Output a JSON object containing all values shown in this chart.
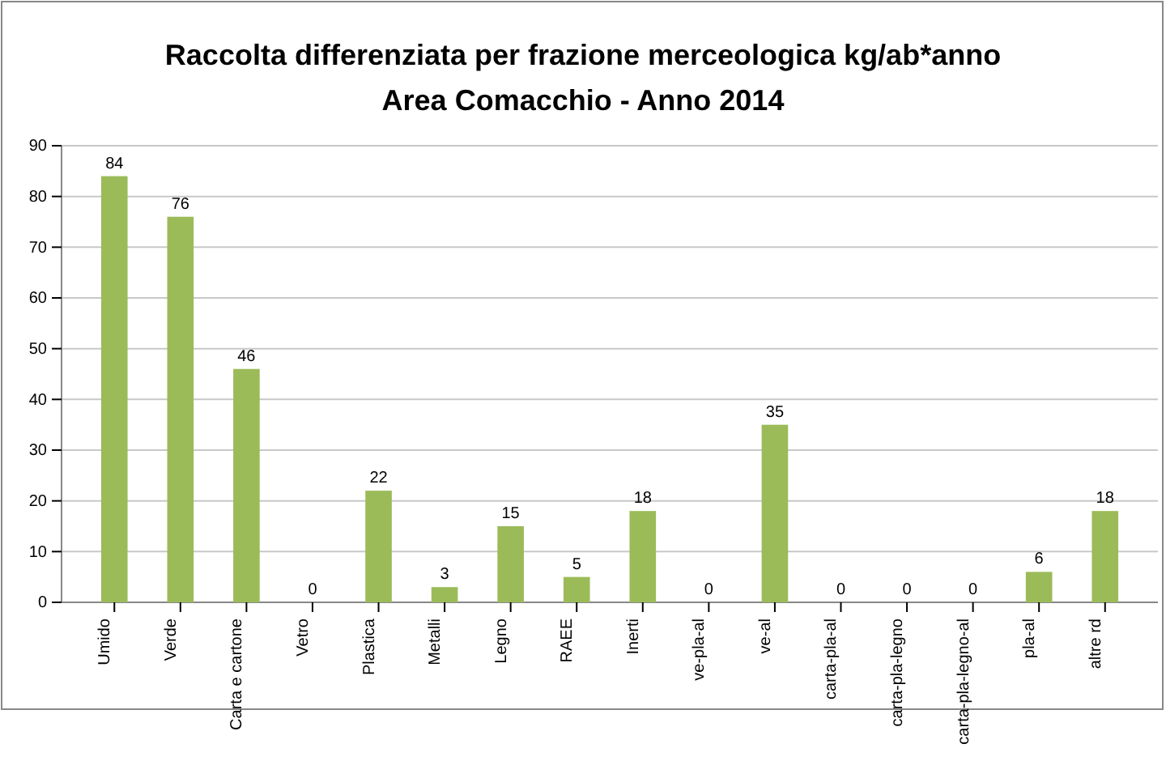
{
  "chart_data": {
    "type": "bar",
    "title": "Raccolta differenziata per frazione merceologica kg/ab*anno",
    "subtitle": "Area Comacchio - Anno 2014",
    "categories": [
      "Umido",
      "Verde",
      "Carta e cartone",
      "Vetro",
      "Plastica",
      "Metalli",
      "Legno",
      "RAEE",
      "Inerti",
      "ve-pla-al",
      "ve-al",
      "carta-pla-al",
      "carta-pla-legno",
      "carta-pla-legno-al",
      "pla-al",
      "altre rd"
    ],
    "values": [
      84,
      76,
      46,
      0,
      22,
      3,
      15,
      5,
      18,
      0,
      35,
      0,
      0,
      0,
      6,
      18
    ],
    "color": "#9bbb59",
    "ylim": [
      0,
      90
    ],
    "yticks": [
      0,
      10,
      20,
      30,
      40,
      50,
      60,
      70,
      80,
      90
    ],
    "grid": "y",
    "data_labels": true
  }
}
